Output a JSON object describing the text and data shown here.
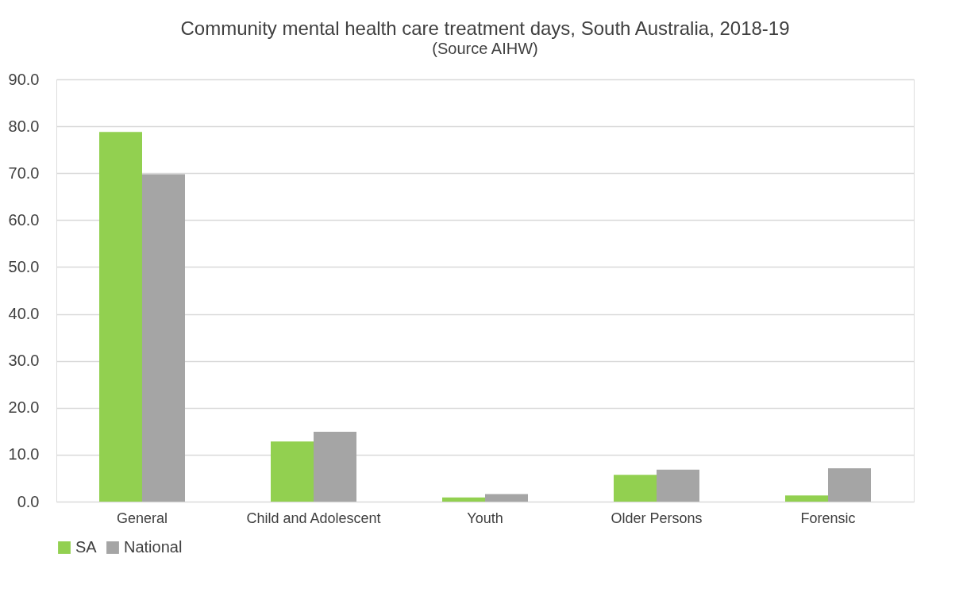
{
  "chart_data": {
    "type": "bar",
    "title": "Community mental health care treatment days, South Australia, 2018-19",
    "subtitle": "(Source AIHW)",
    "categories": [
      "General",
      "Child and Adolescent",
      "Youth",
      "Older Persons",
      "Forensic"
    ],
    "series": [
      {
        "name": "SA",
        "color": "#92d050",
        "values": [
          78.8,
          12.8,
          0.9,
          5.7,
          1.3
        ]
      },
      {
        "name": "National",
        "color": "#a5a5a5",
        "values": [
          69.8,
          14.9,
          1.6,
          6.8,
          7.1
        ]
      }
    ],
    "ylim": [
      0,
      90
    ],
    "yticks": [
      {
        "value": 0,
        "label": "0.0"
      },
      {
        "value": 10,
        "label": "10.0"
      },
      {
        "value": 20,
        "label": "20.0"
      },
      {
        "value": 30,
        "label": "30.0"
      },
      {
        "value": 40,
        "label": "40.0"
      },
      {
        "value": 50,
        "label": "50.0"
      },
      {
        "value": 60,
        "label": "60.0"
      },
      {
        "value": 70,
        "label": "70.0"
      },
      {
        "value": 80,
        "label": "80.0"
      },
      {
        "value": 90,
        "label": "90.0"
      }
    ],
    "grid": "y",
    "legend": "bottom"
  }
}
